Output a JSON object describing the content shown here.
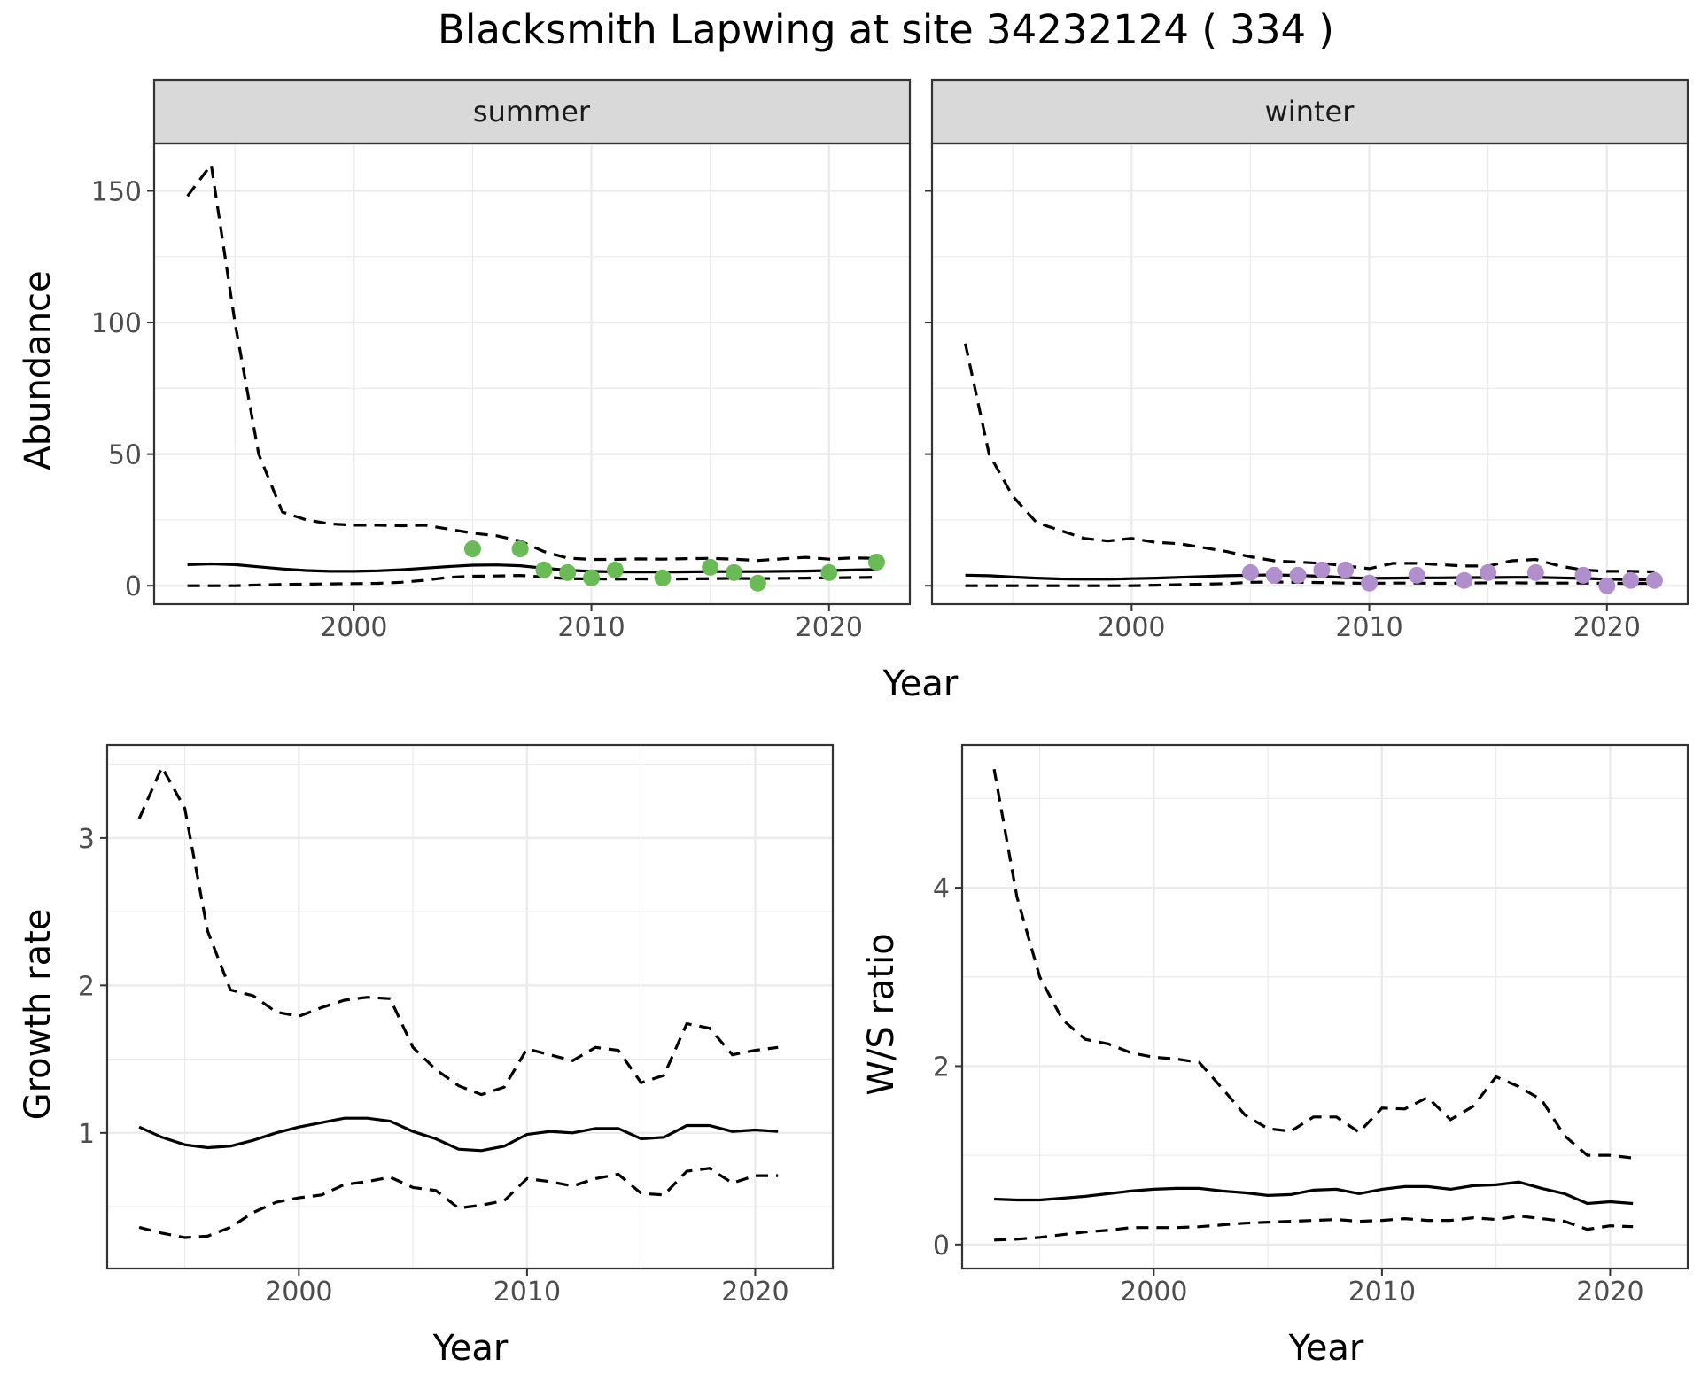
{
  "title": "Blacksmith Lapwing at site 34232124 ( 334 )",
  "colors": {
    "summer_points": "#6aba55",
    "winter_points": "#b18fcc",
    "strip_fill": "#d9d9d9"
  },
  "chart_data": [
    {
      "id": "abundance",
      "type": "line",
      "xlabel": "Year",
      "ylabel": "Abundance",
      "xlim": [
        1991.6,
        2023.4
      ],
      "ylim": [
        -7,
        168
      ],
      "xticks": [
        2000,
        2010,
        2020
      ],
      "yticks": [
        0,
        50,
        100,
        150
      ],
      "grid": true,
      "facets": [
        {
          "label": "summer",
          "point_color": "#6aba55",
          "x": [
            1993,
            1994,
            1995,
            1996,
            1997,
            1998,
            1999,
            2000,
            2001,
            2002,
            2003,
            2004,
            2005,
            2006,
            2007,
            2008,
            2009,
            2010,
            2011,
            2012,
            2013,
            2014,
            2015,
            2016,
            2017,
            2018,
            2019,
            2020,
            2021,
            2022
          ],
          "mean": [
            8,
            8.3,
            8,
            7.2,
            6.4,
            5.8,
            5.5,
            5.5,
            5.7,
            6.1,
            6.7,
            7.3,
            7.8,
            7.9,
            7.6,
            6.7,
            5.9,
            5.5,
            5.3,
            5.2,
            5.2,
            5.3,
            5.4,
            5.4,
            5.4,
            5.5,
            5.6,
            5.8,
            6,
            6.2
          ],
          "lower": [
            0,
            0,
            0,
            0.3,
            0.5,
            0.6,
            0.7,
            0.8,
            0.9,
            1.3,
            2.1,
            3.2,
            3.6,
            3.7,
            3.9,
            3.3,
            2.7,
            2.6,
            2.5,
            2.6,
            2.5,
            2.6,
            2.7,
            2.8,
            2.7,
            2.8,
            2.9,
            3,
            3.1,
            3.2
          ],
          "upper": [
            148,
            160,
            100,
            50,
            28,
            25,
            23.5,
            23,
            23,
            22.8,
            23,
            21.5,
            20,
            19,
            17,
            13,
            10.5,
            10,
            10,
            10.2,
            10.1,
            10.3,
            10.4,
            10.1,
            9.6,
            10.2,
            10.8,
            10.1,
            10.6,
            10.4
          ],
          "obs_x": [
            2005,
            2007,
            2008,
            2009,
            2010,
            2011,
            2013,
            2015,
            2016,
            2017,
            2020,
            2022
          ],
          "obs_y": [
            14,
            14,
            6,
            5,
            3,
            6,
            3,
            7,
            5,
            1,
            5,
            9
          ]
        },
        {
          "label": "winter",
          "point_color": "#b18fcc",
          "x": [
            1993,
            1994,
            1995,
            1996,
            1997,
            1998,
            1999,
            2000,
            2001,
            2002,
            2003,
            2004,
            2005,
            2006,
            2007,
            2008,
            2009,
            2010,
            2011,
            2012,
            2013,
            2014,
            2015,
            2016,
            2017,
            2018,
            2019,
            2020,
            2021,
            2022
          ],
          "mean": [
            4,
            3.8,
            3.3,
            2.9,
            2.6,
            2.5,
            2.5,
            2.7,
            2.9,
            3.2,
            3.5,
            3.8,
            4,
            4.1,
            3.9,
            3.6,
            3.1,
            2.8,
            2.9,
            3,
            3,
            3.1,
            3.1,
            3.2,
            3.2,
            3,
            2.8,
            2.5,
            2.3,
            2.3
          ],
          "lower": [
            0,
            0,
            0,
            0,
            0,
            0,
            0,
            0,
            0.2,
            0.4,
            0.6,
            0.8,
            1.3,
            1.4,
            1.3,
            1.2,
            1,
            0.9,
            1,
            1,
            0.9,
            1,
            1.1,
            1.1,
            1,
            1,
            1,
            0.9,
            0.9,
            0.9
          ],
          "upper": [
            92,
            50,
            34,
            24,
            21,
            18,
            17,
            18,
            16.5,
            16,
            14.5,
            13,
            11,
            9.5,
            9,
            8.5,
            7.5,
            6.5,
            8.5,
            8.5,
            8,
            7.5,
            7.5,
            9.5,
            10,
            7.5,
            6,
            5.5,
            5.5,
            5.3
          ],
          "obs_x": [
            2005,
            2006,
            2007,
            2008,
            2009,
            2010,
            2012,
            2014,
            2015,
            2017,
            2019,
            2020,
            2021,
            2022
          ],
          "obs_y": [
            5,
            4,
            4,
            6,
            6,
            1,
            4,
            2,
            5,
            5,
            4,
            0,
            2,
            2
          ]
        }
      ]
    },
    {
      "id": "growth",
      "type": "line",
      "xlabel": "Year",
      "ylabel": "Growth rate",
      "xlim": [
        1991.6,
        2023.4
      ],
      "ylim": [
        0.08,
        3.63
      ],
      "xticks": [
        2000,
        2010,
        2020
      ],
      "yticks": [
        1,
        2,
        3
      ],
      "grid": true,
      "x": [
        1993,
        1994,
        1995,
        1996,
        1997,
        1998,
        1999,
        2000,
        2001,
        2002,
        2003,
        2004,
        2005,
        2006,
        2007,
        2008,
        2009,
        2010,
        2011,
        2012,
        2013,
        2014,
        2015,
        2016,
        2017,
        2018,
        2019,
        2020,
        2021
      ],
      "mean": [
        1.04,
        0.97,
        0.92,
        0.9,
        0.91,
        0.95,
        1,
        1.04,
        1.07,
        1.1,
        1.1,
        1.08,
        1.01,
        0.96,
        0.89,
        0.88,
        0.91,
        0.99,
        1.01,
        1,
        1.03,
        1.03,
        0.96,
        0.97,
        1.05,
        1.05,
        1.01,
        1.02,
        1.01
      ],
      "lower": [
        0.36,
        0.32,
        0.29,
        0.3,
        0.36,
        0.46,
        0.53,
        0.56,
        0.58,
        0.65,
        0.67,
        0.7,
        0.63,
        0.61,
        0.49,
        0.51,
        0.54,
        0.69,
        0.67,
        0.64,
        0.69,
        0.72,
        0.59,
        0.58,
        0.74,
        0.76,
        0.66,
        0.71,
        0.71
      ],
      "upper": [
        3.13,
        3.48,
        3.2,
        2.37,
        1.97,
        1.93,
        1.82,
        1.79,
        1.85,
        1.9,
        1.92,
        1.91,
        1.58,
        1.43,
        1.32,
        1.26,
        1.31,
        1.57,
        1.53,
        1.49,
        1.58,
        1.56,
        1.34,
        1.39,
        1.74,
        1.71,
        1.53,
        1.56,
        1.58
      ]
    },
    {
      "id": "ws_ratio",
      "type": "line",
      "xlabel": "Year",
      "ylabel": "W/S ratio",
      "xlim": [
        1991.6,
        2023.4
      ],
      "ylim": [
        -0.27,
        5.6
      ],
      "xticks": [
        2000,
        2010,
        2020
      ],
      "yticks": [
        0,
        2,
        4
      ],
      "grid": true,
      "x": [
        1993,
        1994,
        1995,
        1996,
        1997,
        1998,
        1999,
        2000,
        2001,
        2002,
        2003,
        2004,
        2005,
        2006,
        2007,
        2008,
        2009,
        2010,
        2011,
        2012,
        2013,
        2014,
        2015,
        2016,
        2017,
        2018,
        2019,
        2020,
        2021
      ],
      "mean": [
        0.51,
        0.5,
        0.5,
        0.52,
        0.54,
        0.57,
        0.6,
        0.62,
        0.63,
        0.63,
        0.6,
        0.58,
        0.55,
        0.56,
        0.61,
        0.62,
        0.57,
        0.62,
        0.65,
        0.65,
        0.62,
        0.66,
        0.67,
        0.7,
        0.63,
        0.57,
        0.46,
        0.48,
        0.46
      ],
      "lower": [
        0.05,
        0.06,
        0.08,
        0.11,
        0.14,
        0.16,
        0.19,
        0.19,
        0.19,
        0.2,
        0.22,
        0.24,
        0.25,
        0.26,
        0.27,
        0.28,
        0.26,
        0.27,
        0.29,
        0.27,
        0.27,
        0.3,
        0.28,
        0.32,
        0.29,
        0.26,
        0.17,
        0.21,
        0.2
      ],
      "upper": [
        5.33,
        3.9,
        3,
        2.52,
        2.3,
        2.25,
        2.15,
        2.1,
        2.08,
        2.04,
        1.75,
        1.45,
        1.3,
        1.27,
        1.43,
        1.43,
        1.26,
        1.53,
        1.52,
        1.65,
        1.4,
        1.55,
        1.88,
        1.77,
        1.62,
        1.22,
        1,
        1,
        0.97
      ]
    }
  ]
}
